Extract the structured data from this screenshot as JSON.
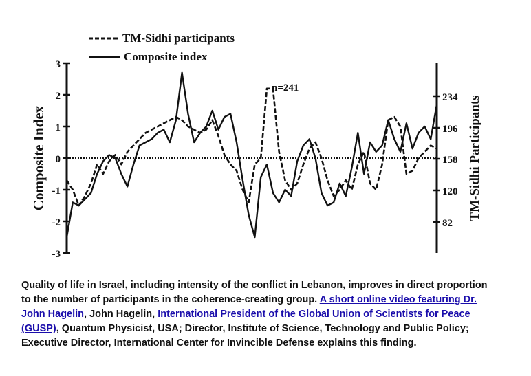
{
  "chart_data": {
    "type": "line",
    "legend": {
      "position": "top",
      "entries": [
        {
          "label": "TM-Sidhi participants",
          "style": "dashed"
        },
        {
          "label": "Composite index",
          "style": "solid"
        }
      ]
    },
    "ylabel": "Composite Index",
    "y2label": "TM-Sidhi Participants",
    "ylim": [
      -3,
      3
    ],
    "y2lim": [
      43,
      274
    ],
    "yticks": [
      "3",
      "2",
      "1",
      "0",
      "-1",
      "-2",
      "-3"
    ],
    "y2ticks": [
      "234",
      "196",
      "158",
      "120",
      "82"
    ],
    "annotation": "n=241",
    "grid": false,
    "series": [
      {
        "name": "Composite index",
        "style": "solid",
        "axis": "left",
        "values": [
          -2.5,
          -1.4,
          -1.5,
          -1.3,
          -1.1,
          -0.5,
          -0.1,
          0.1,
          0.0,
          -0.5,
          -0.9,
          -0.2,
          0.4,
          0.5,
          0.6,
          0.8,
          0.9,
          0.5,
          1.2,
          2.7,
          1.4,
          0.5,
          0.8,
          1.0,
          1.5,
          0.9,
          1.3,
          1.4,
          0.5,
          -0.7,
          -1.8,
          -2.5,
          -0.6,
          -0.2,
          -1.1,
          -1.4,
          -1.0,
          -1.2,
          -0.1,
          0.4,
          0.6,
          0.0,
          -1.1,
          -1.5,
          -1.4,
          -0.8,
          -1.2,
          -0.3,
          0.8,
          -0.5,
          0.5,
          0.2,
          0.4,
          1.2,
          0.6,
          0.2,
          1.1,
          0.3,
          0.8,
          1.0,
          0.6,
          1.7
        ]
      },
      {
        "name": "TM-Sidhi participants",
        "style": "dashed",
        "axis": "left",
        "values": [
          -0.7,
          -1.0,
          -1.5,
          -1.2,
          -0.8,
          -0.2,
          -0.5,
          -0.1,
          0.1,
          -0.2,
          0.2,
          0.4,
          0.6,
          0.8,
          0.9,
          1.0,
          1.1,
          1.2,
          1.3,
          1.2,
          1.0,
          0.9,
          0.8,
          0.9,
          1.2,
          0.7,
          0.1,
          -0.2,
          -0.4,
          -1.0,
          -1.4,
          -0.2,
          0.0,
          2.2,
          2.2,
          0.2,
          -0.7,
          -1.0,
          -0.8,
          -0.2,
          0.3,
          0.5,
          0.0,
          -0.7,
          -1.2,
          -1.0,
          -0.7,
          -1.0,
          -0.2,
          0.2,
          -0.8,
          -1.0,
          -0.2,
          1.2,
          1.3,
          1.0,
          -0.5,
          -0.4,
          0.0,
          0.2,
          0.4,
          0.3
        ]
      },
      {
        "name": "zero-baseline",
        "style": "dotted",
        "axis": "left",
        "values": [
          0,
          0
        ]
      }
    ]
  },
  "caption": {
    "text_1": "Quality of life in Israel, including intensity of the conflict in Lebanon, improves in direct proportion to the number of participants in the coherence-creating group. ",
    "link_1": "A short online video featuring Dr. John Hagelin",
    "text_2": ", John Hagelin, ",
    "link_2": "International President of the Global Union of Scientists for Peace (GUSP)",
    "text_3": ", Quantum Physicist, USA; Director, Institute of Science, Technology and Public Policy; Executive Director, International Center for Invincible Defense explains this finding."
  },
  "colors": {
    "ink": "#111111",
    "link": "#1a0dab",
    "background": "#ffffff"
  }
}
